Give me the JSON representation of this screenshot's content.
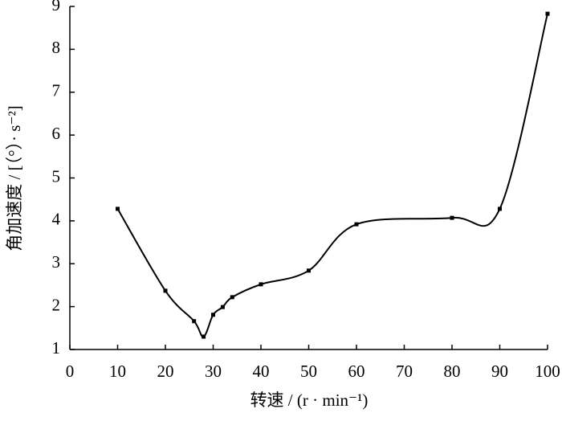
{
  "chart_data": {
    "type": "line",
    "x_label": "转速 / (r · min⁻¹)",
    "y_label": "角加速度 / [（°）· s⁻²]",
    "x": [
      10,
      20,
      26,
      28,
      30,
      32,
      34,
      40,
      50,
      60,
      80,
      90,
      100
    ],
    "series": [
      {
        "color": "#000000",
        "values": [
          4.28,
          2.37,
          1.66,
          1.3,
          1.81,
          1.99,
          2.22,
          2.52,
          2.84,
          3.92,
          4.07,
          4.28,
          8.83
        ]
      }
    ],
    "xlim": [
      0,
      100
    ],
    "xticks": [
      0,
      10,
      20,
      30,
      40,
      50,
      60,
      70,
      80,
      90,
      100
    ],
    "ylim": [
      1,
      9
    ],
    "yticks": [
      1,
      2,
      3,
      4,
      5,
      6,
      7,
      8,
      9
    ],
    "grid": false,
    "smooth": true
  }
}
